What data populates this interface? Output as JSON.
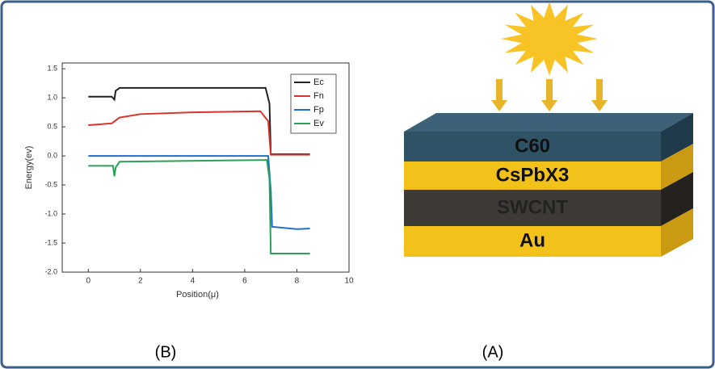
{
  "chart_data": {
    "type": "line",
    "y_label": "Energy(ev)",
    "x_label": "Position(μ)",
    "xlim": [
      -1,
      10
    ],
    "xticks": [
      0,
      2,
      4,
      6,
      8,
      10
    ],
    "ylim": [
      -2.0,
      1.6
    ],
    "yticks": [
      {
        "value": -2.0,
        "label": "-2.0"
      },
      -1.5,
      {
        "value": -1.0,
        "label": "-1.0"
      },
      -0.5,
      {
        "value": 0.0,
        "label": "0.0"
      },
      0.5,
      {
        "value": 1.0,
        "label": "1.0"
      },
      1.5
    ],
    "legend": "upper right",
    "series": [
      {
        "name": "Ec",
        "color": "#222222",
        "x": [
          0,
          0.9,
          1.0,
          1.05,
          1.2,
          6.8,
          6.95,
          7.0,
          8.5
        ],
        "values": [
          1.02,
          1.02,
          0.97,
          1.12,
          1.17,
          1.17,
          0.9,
          0.03,
          0.03
        ]
      },
      {
        "name": "Fn",
        "color": "#d9342b",
        "x": [
          0,
          0.9,
          1.2,
          2,
          4,
          6.6,
          6.9,
          7.0,
          8.5
        ],
        "values": [
          0.53,
          0.56,
          0.66,
          0.72,
          0.75,
          0.77,
          0.6,
          0.02,
          0.02
        ]
      },
      {
        "name": "Fp",
        "color": "#1f6fd1",
        "x": [
          0,
          6.9,
          7.0,
          7.05,
          8.0,
          8.5
        ],
        "values": [
          0.0,
          0.0,
          -0.6,
          -1.22,
          -1.26,
          -1.25
        ]
      },
      {
        "name": "Ev",
        "color": "#2ca05a",
        "x": [
          0,
          0.95,
          1.0,
          1.05,
          1.2,
          6.85,
          6.95,
          7.0,
          8.5
        ],
        "values": [
          -0.17,
          -0.17,
          -0.35,
          -0.2,
          -0.1,
          -0.07,
          -0.4,
          -1.68,
          -1.68
        ]
      }
    ]
  },
  "panel_labels": [
    "(B)",
    "(A)"
  ],
  "diagram": {
    "layers": [
      "C60",
      "CsPbX3",
      "SWCNT",
      "Au"
    ]
  }
}
